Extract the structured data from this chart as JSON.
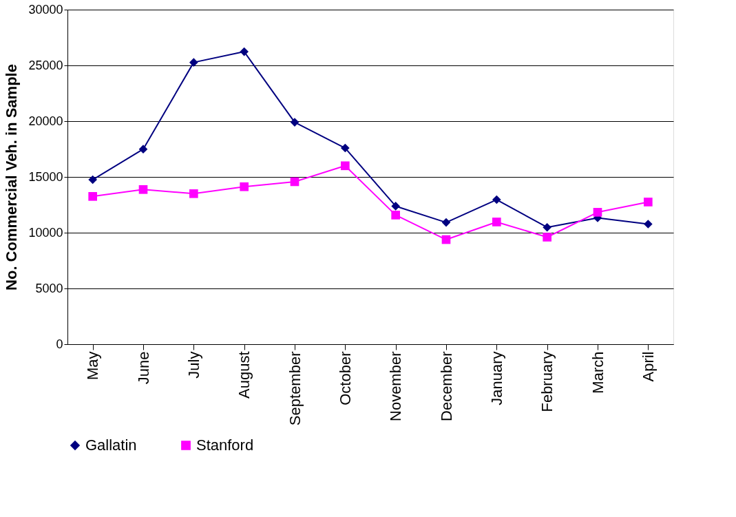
{
  "chart_data": {
    "type": "line",
    "ylabel": "No. Commercial Veh. in Sample",
    "categories": [
      "May",
      "June",
      "July",
      "August",
      "September",
      "October",
      "November",
      "December",
      "January",
      "February",
      "March",
      "April"
    ],
    "series": [
      {
        "name": "Gallatin",
        "color": "#000080",
        "marker": "diamond",
        "values": [
          14750,
          17490,
          25270,
          26230,
          19900,
          17590,
          12380,
          10920,
          12960,
          10480,
          11330,
          10770
        ]
      },
      {
        "name": "Stanford",
        "color": "#ff00ff",
        "marker": "square",
        "values": [
          13250,
          13870,
          13500,
          14120,
          14570,
          16000,
          11580,
          9380,
          10960,
          9600,
          11830,
          12750
        ]
      }
    ],
    "ylim": [
      0,
      30000
    ],
    "yticks": [
      0,
      5000,
      10000,
      15000,
      20000,
      25000,
      30000
    ],
    "grid": "y",
    "legend": "bottom",
    "line_style": "solid"
  }
}
